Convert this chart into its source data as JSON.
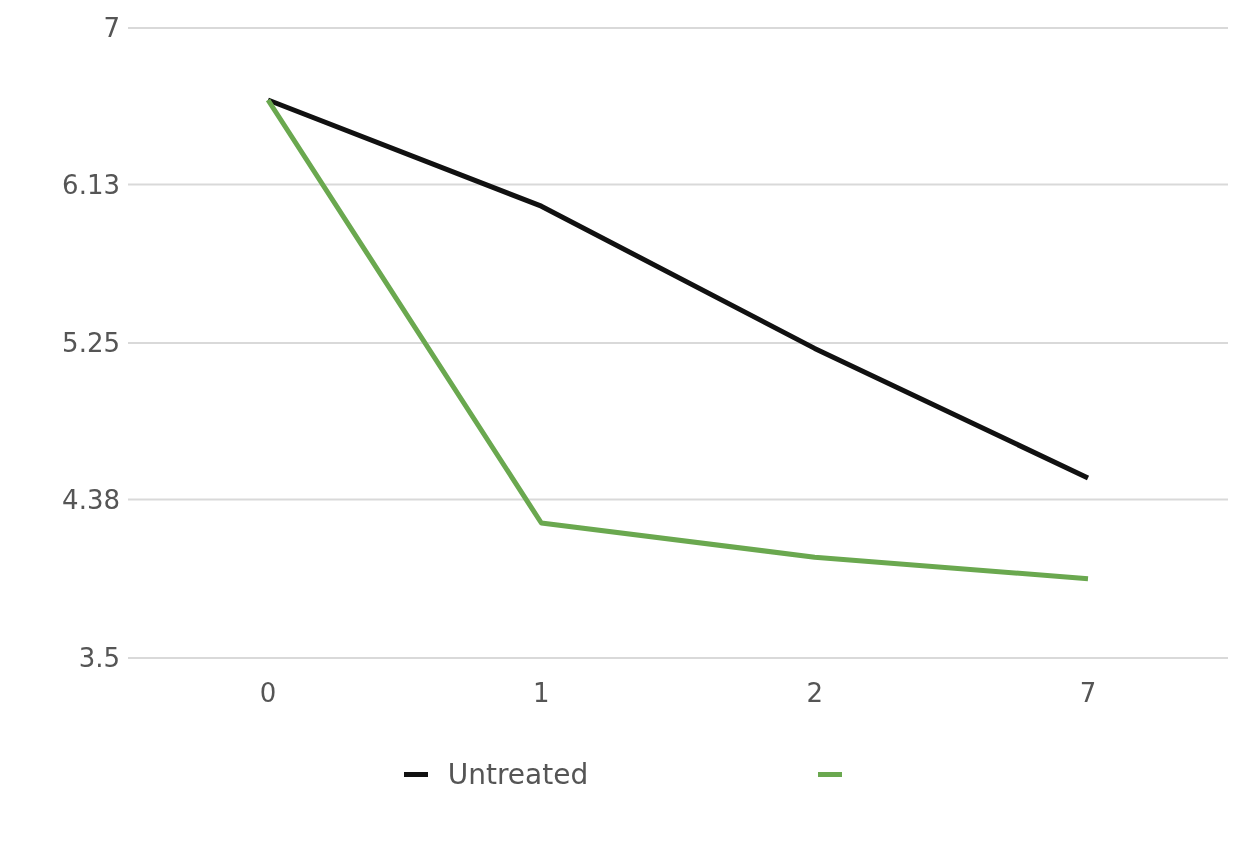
{
  "chart_data": {
    "type": "line",
    "categories": [
      "0",
      "1",
      "2",
      "7"
    ],
    "series": [
      {
        "name": "Untreated",
        "color": "#111111",
        "values": [
          6.6,
          6.01,
          5.22,
          4.5
        ]
      },
      {
        "color": "#6aa84f",
        "values": [
          6.6,
          4.25,
          4.06,
          3.94
        ]
      }
    ],
    "ylim": [
      3.5,
      7
    ],
    "yticks": [
      3.5,
      4.38,
      5.25,
      6.13,
      7
    ],
    "grid": "y",
    "legend": "bottom",
    "marker": "none",
    "line_style": "solid"
  }
}
